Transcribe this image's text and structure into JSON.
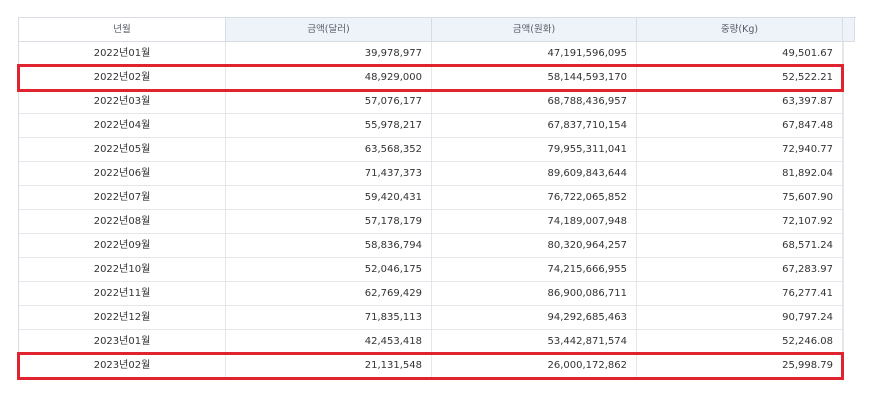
{
  "table": {
    "columns": [
      "년월",
      "금액(달러)",
      "금액(원화)",
      "중량(Kg)"
    ],
    "rows": [
      {
        "month": "2022년01월",
        "usd": "39,978,977",
        "krw": "47,191,596,095",
        "weight": "49,501.67"
      },
      {
        "month": "2022년02월",
        "usd": "48,929,000",
        "krw": "58,144,593,170",
        "weight": "52,522.21"
      },
      {
        "month": "2022년03월",
        "usd": "57,076,177",
        "krw": "68,788,436,957",
        "weight": "63,397.87"
      },
      {
        "month": "2022년04월",
        "usd": "55,978,217",
        "krw": "67,837,710,154",
        "weight": "67,847.48"
      },
      {
        "month": "2022년05월",
        "usd": "63,568,352",
        "krw": "79,955,311,041",
        "weight": "72,940.77"
      },
      {
        "month": "2022년06월",
        "usd": "71,437,373",
        "krw": "89,609,843,644",
        "weight": "81,892.04"
      },
      {
        "month": "2022년07월",
        "usd": "59,420,431",
        "krw": "76,722,065,852",
        "weight": "75,607.90"
      },
      {
        "month": "2022년08월",
        "usd": "57,178,179",
        "krw": "74,189,007,948",
        "weight": "72,107.92"
      },
      {
        "month": "2022년09월",
        "usd": "58,836,794",
        "krw": "80,320,964,257",
        "weight": "68,571.24"
      },
      {
        "month": "2022년10월",
        "usd": "52,046,175",
        "krw": "74,215,666,955",
        "weight": "67,283.97"
      },
      {
        "month": "2022년11월",
        "usd": "62,769,429",
        "krw": "86,900,086,711",
        "weight": "76,277.41"
      },
      {
        "month": "2022년12월",
        "usd": "71,835,113",
        "krw": "94,292,685,463",
        "weight": "90,797.24"
      },
      {
        "month": "2023년01월",
        "usd": "42,453,418",
        "krw": "53,442,871,574",
        "weight": "52,246.08"
      },
      {
        "month": "2023년02월",
        "usd": "21,131,548",
        "krw": "26,000,172,862",
        "weight": "25,998.79"
      }
    ],
    "highlighted_months": [
      "2022년02월",
      "2023년02월"
    ],
    "highlight_color": "#e0242f"
  }
}
